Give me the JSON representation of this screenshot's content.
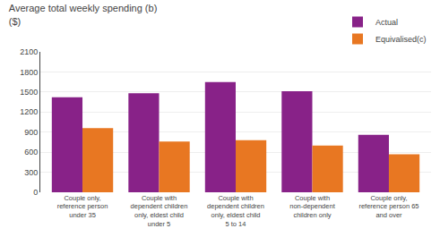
{
  "chart_data": {
    "type": "bar",
    "title": "Average total weekly spending (b)",
    "subtitle": "($)",
    "categories": [
      "Couple only,\nreference person\nunder 35",
      "Couple with\ndependent children\nonly, eldest child\nunder 5",
      "Couple with\ndependent children\nonly, eldest child\n5 to 14",
      "Couple with\nnon-dependent\nchildren only",
      "Couple only,\nreference person 65\nand over"
    ],
    "series": [
      {
        "name": "Actual",
        "color": "#882288",
        "values": [
          1420,
          1480,
          1650,
          1510,
          860
        ]
      },
      {
        "name": "Equivalised(c)",
        "color": "#E87722",
        "values": [
          960,
          760,
          780,
          700,
          570
        ]
      }
    ],
    "ylim": [
      0,
      2100
    ],
    "yticks": [
      0,
      300,
      600,
      900,
      1200,
      1500,
      1800,
      2100
    ],
    "grid": true,
    "legend": "upper right"
  }
}
